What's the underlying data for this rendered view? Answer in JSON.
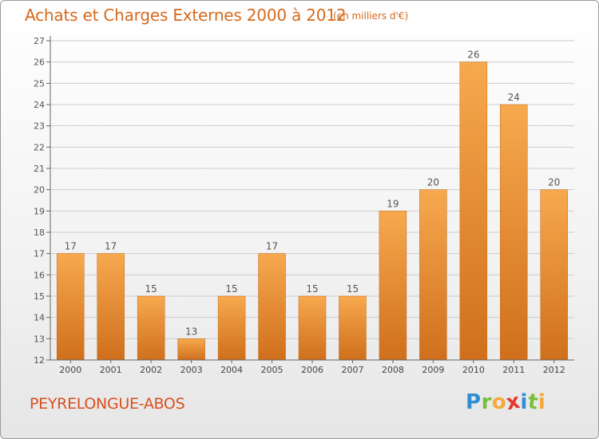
{
  "header": {
    "title": "Achats et Charges Externes 2000 à 2012",
    "subtitle": "(en milliers d'€)"
  },
  "footer": {
    "commune": "PEYRELONGUE-ABOS",
    "logo_letters": [
      "P",
      "r",
      "o",
      "x",
      "i",
      "t",
      "i"
    ],
    "logo_colors": [
      "#2f8fd1",
      "#7cbf3a",
      "#f4a93a",
      "#e23a2e",
      "#2f8fd1",
      "#7cbf3a",
      "#f4a93a"
    ]
  },
  "colors": {
    "accent": "#d56a1c",
    "bar_top": "#f7a94e",
    "bar_bottom": "#cf6f1c",
    "grid": "#cccccc"
  },
  "chart_data": {
    "type": "bar",
    "title": "Achats et Charges Externes 2000 à 2012",
    "subtitle": "(en milliers d'€)",
    "categories": [
      "2000",
      "2001",
      "2002",
      "2003",
      "2004",
      "2005",
      "2006",
      "2007",
      "2008",
      "2009",
      "2010",
      "2011",
      "2012"
    ],
    "values": [
      17,
      17,
      15,
      13,
      15,
      17,
      15,
      15,
      19,
      20,
      26,
      24,
      20
    ],
    "ylim": [
      12,
      27
    ],
    "yticks": [
      12,
      13,
      14,
      15,
      16,
      17,
      18,
      19,
      20,
      21,
      22,
      23,
      24,
      25,
      26,
      27
    ],
    "grid": true,
    "data_labels": true
  }
}
